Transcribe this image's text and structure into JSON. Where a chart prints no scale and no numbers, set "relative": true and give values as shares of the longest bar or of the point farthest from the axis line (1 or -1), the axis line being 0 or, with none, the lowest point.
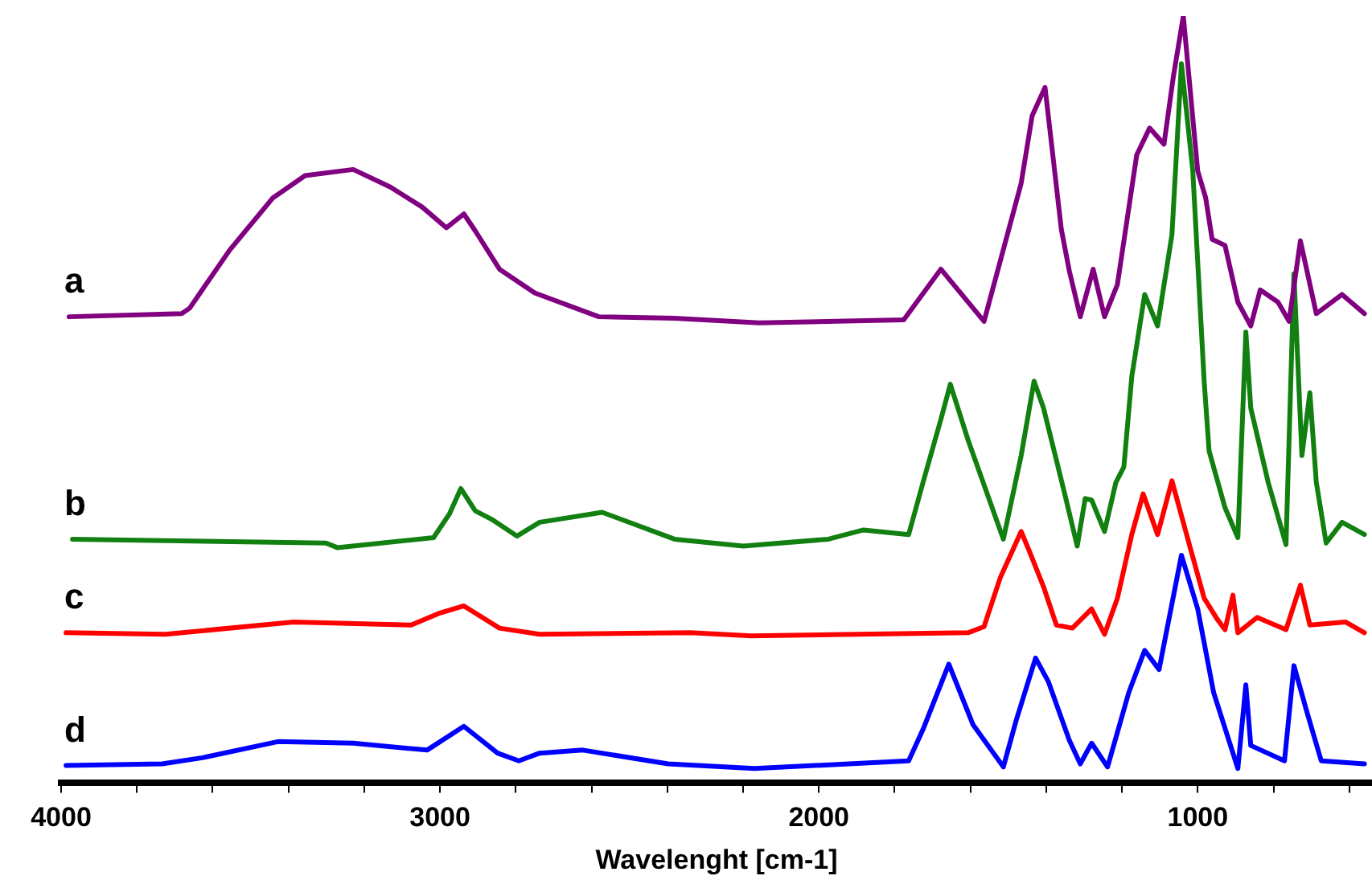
{
  "chart_data": {
    "type": "line",
    "relative": true,
    "xlabel": "Wavelenght [cm-1]",
    "xlim": [
      4000,
      540
    ],
    "xticks": [
      4000,
      {
        "value": 3800,
        "label": null
      },
      {
        "value": 3600,
        "label": null
      },
      {
        "value": 3400,
        "label": null
      },
      {
        "value": 3200,
        "label": null
      },
      3000,
      {
        "value": 2800,
        "label": null
      },
      {
        "value": 2600,
        "label": null
      },
      {
        "value": 2400,
        "label": null
      },
      {
        "value": 2200,
        "label": null
      },
      2000,
      {
        "value": 1800,
        "label": null
      },
      {
        "value": 1600,
        "label": null
      },
      {
        "value": 1400,
        "label": null
      },
      {
        "value": 1200,
        "label": null
      },
      1000,
      {
        "value": 800,
        "label": null
      },
      {
        "value": 600,
        "label": null
      }
    ],
    "grid": false,
    "legend": false,
    "marker": "none",
    "line_style": "solid",
    "tick_labels": "x",
    "series": [
      {
        "name": "a",
        "color": "#800080",
        "x": [
          3979,
          3682,
          3661,
          3555,
          3441,
          3356,
          3229,
          3131,
          3047,
          2983,
          2937,
          2907,
          2843,
          2750,
          2581,
          2381,
          2157,
          1776,
          1678,
          1564,
          1466,
          1437,
          1403,
          1360,
          1339,
          1310,
          1276,
          1246,
          1212,
          1161,
          1127,
          1089,
          1064,
          1038,
          1000,
          979,
          962,
          928,
          894,
          860,
          835,
          788,
          759,
          729,
          687,
          619,
          560
        ],
        "values": [
          0.608,
          0.612,
          0.619,
          0.695,
          0.763,
          0.792,
          0.8,
          0.777,
          0.751,
          0.724,
          0.742,
          0.72,
          0.67,
          0.639,
          0.608,
          0.606,
          0.6,
          0.604,
          0.67,
          0.602,
          0.782,
          0.87,
          0.907,
          0.722,
          0.668,
          0.608,
          0.67,
          0.608,
          0.65,
          0.819,
          0.854,
          0.833,
          0.922,
          1.0,
          0.798,
          0.763,
          0.709,
          0.701,
          0.627,
          0.596,
          0.643,
          0.627,
          0.602,
          0.707,
          0.612,
          0.637,
          0.612
        ]
      },
      {
        "name": "b",
        "color": "#118011",
        "x": [
          3970,
          3301,
          3271,
          3017,
          2975,
          2945,
          2907,
          2864,
          2797,
          2737,
          2572,
          2381,
          2199,
          1975,
          1882,
          1763,
          1725,
          1678,
          1653,
          1606,
          1513,
          1466,
          1432,
          1407,
          1352,
          1318,
          1297,
          1280,
          1246,
          1216,
          1195,
          1174,
          1140,
          1106,
          1068,
          1043,
          1013,
          983,
          970,
          928,
          894,
          873,
          860,
          814,
          767,
          746,
          725,
          704,
          687,
          661,
          619,
          560
        ],
        "values": [
          0.318,
          0.313,
          0.307,
          0.32,
          0.351,
          0.384,
          0.355,
          0.344,
          0.322,
          0.34,
          0.353,
          0.318,
          0.309,
          0.318,
          0.33,
          0.324,
          0.392,
          0.474,
          0.52,
          0.447,
          0.318,
          0.427,
          0.524,
          0.489,
          0.379,
          0.309,
          0.371,
          0.369,
          0.328,
          0.392,
          0.412,
          0.53,
          0.637,
          0.596,
          0.715,
          0.938,
          0.798,
          0.524,
          0.433,
          0.359,
          0.32,
          0.588,
          0.489,
          0.392,
          0.311,
          0.664,
          0.427,
          0.509,
          0.392,
          0.313,
          0.34,
          0.324
        ]
      },
      {
        "name": "c",
        "color": "#ff0000",
        "x": [
          3987,
          3725,
          3386,
          3076,
          3004,
          2937,
          2843,
          2737,
          2339,
          2178,
          1606,
          1564,
          1521,
          1466,
          1445,
          1407,
          1373,
          1331,
          1280,
          1246,
          1212,
          1174,
          1144,
          1106,
          1068,
          1021,
          983,
          949,
          928,
          907,
          894,
          843,
          767,
          729,
          704,
          610,
          560
        ],
        "values": [
          0.196,
          0.194,
          0.21,
          0.206,
          0.221,
          0.231,
          0.202,
          0.194,
          0.196,
          0.192,
          0.196,
          0.204,
          0.268,
          0.328,
          0.303,
          0.256,
          0.206,
          0.202,
          0.227,
          0.194,
          0.241,
          0.324,
          0.377,
          0.324,
          0.394,
          0.309,
          0.241,
          0.214,
          0.2,
          0.245,
          0.196,
          0.216,
          0.2,
          0.258,
          0.206,
          0.21,
          0.196
        ]
      },
      {
        "name": "d",
        "color": "#0000ff",
        "x": [
          3987,
          3733,
          3627,
          3428,
          3229,
          3034,
          2937,
          2848,
          2792,
          2737,
          2623,
          2398,
          2170,
          1763,
          1725,
          1657,
          1593,
          1513,
          1479,
          1428,
          1394,
          1339,
          1310,
          1280,
          1238,
          1182,
          1140,
          1102,
          1043,
          1000,
          958,
          894,
          873,
          860,
          771,
          746,
          712,
          674,
          560
        ],
        "values": [
          0.023,
          0.025,
          0.033,
          0.054,
          0.052,
          0.043,
          0.074,
          0.039,
          0.029,
          0.039,
          0.043,
          0.025,
          0.019,
          0.029,
          0.07,
          0.155,
          0.076,
          0.021,
          0.082,
          0.163,
          0.132,
          0.056,
          0.025,
          0.052,
          0.021,
          0.118,
          0.173,
          0.148,
          0.297,
          0.227,
          0.118,
          0.019,
          0.128,
          0.049,
          0.029,
          0.153,
          0.093,
          0.029,
          0.025
        ]
      }
    ]
  }
}
